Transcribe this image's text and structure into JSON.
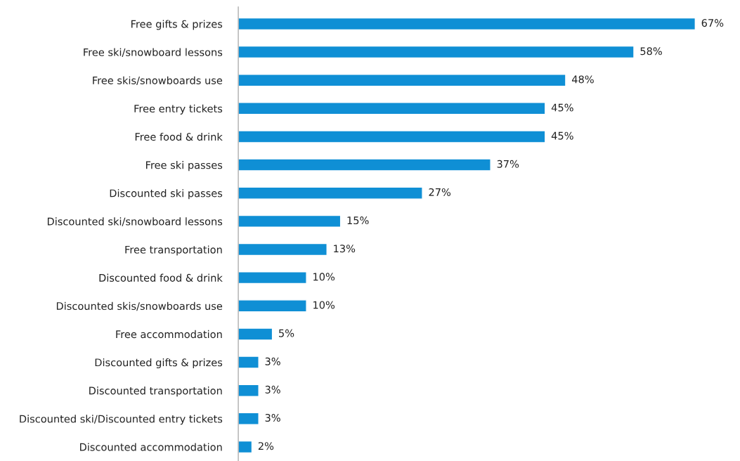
{
  "chart_data": {
    "type": "bar",
    "orientation": "horizontal",
    "categories": [
      "Free gifts & prizes",
      "Free ski/snowboard lessons",
      "Free skis/snowboards use",
      "Free entry tickets",
      "Free food & drink",
      "Free ski passes",
      "Discounted ski passes",
      "Discounted ski/snowboard lessons",
      "Free transportation",
      "Discounted food & drink",
      "Discounted skis/snowboards use",
      "Free accommodation",
      "Discounted gifts & prizes",
      "Discounted transportation",
      "Discounted ski/Discounted entry tickets",
      "Discounted accommodation"
    ],
    "values": [
      67,
      58,
      48,
      45,
      45,
      37,
      27,
      15,
      13,
      10,
      10,
      5,
      3,
      3,
      3,
      2
    ],
    "value_labels": [
      "67%",
      "58%",
      "48%",
      "45%",
      "45%",
      "37%",
      "27%",
      "15%",
      "13%",
      "10%",
      "10%",
      "5%",
      "3%",
      "3%",
      "3%",
      "2%"
    ],
    "color": "#0f8fd5",
    "grid": false,
    "legend": false
  }
}
